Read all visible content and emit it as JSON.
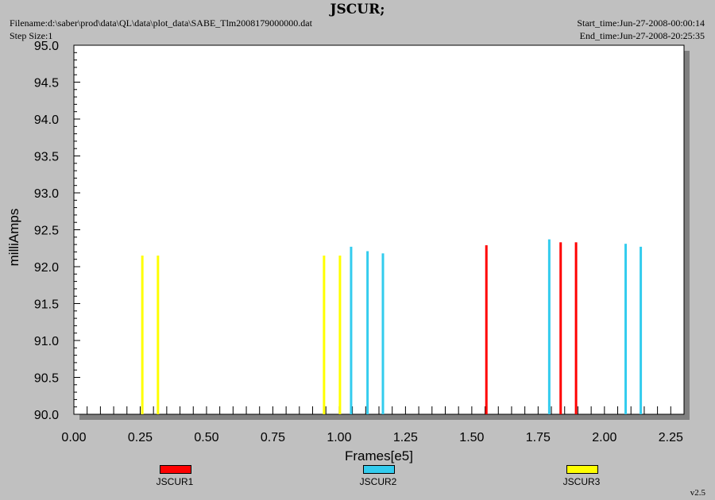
{
  "header": {
    "title": "JSCUR;",
    "filename": "Filename:d:\\saber\\prod\\data\\QL\\data\\plot_data\\SABE_Tlm2008179000000.dat",
    "step_size": "Step Size:1",
    "start_time": "Start_time:Jun-27-2008-00:00:14",
    "end_time": "End_time:Jun-27-2008-20:25:35"
  },
  "version": "v2.5",
  "chart_data": {
    "type": "bar",
    "title": "JSCUR;",
    "xlabel": "Frames[e5]",
    "ylabel": "milliAmps",
    "xlim": [
      0.0,
      2.3
    ],
    "ylim": [
      90.0,
      95.0
    ],
    "xticks": [
      "0.00",
      "0.25",
      "0.50",
      "0.75",
      "1.00",
      "1.25",
      "1.50",
      "1.75",
      "2.00",
      "2.25"
    ],
    "yticks": [
      "90.0",
      "90.5",
      "91.0",
      "91.5",
      "92.0",
      "92.5",
      "93.0",
      "93.5",
      "94.0",
      "94.5",
      "95.0"
    ],
    "grid": false,
    "legend_position": "bottom",
    "series": [
      {
        "name": "JSCUR1",
        "color": "#ff0000",
        "points": [
          {
            "x": 1.555,
            "y": 92.29
          },
          {
            "x": 1.835,
            "y": 92.33
          },
          {
            "x": 1.893,
            "y": 92.33
          }
        ]
      },
      {
        "name": "JSCUR2",
        "color": "#33ccee",
        "points": [
          {
            "x": 1.045,
            "y": 92.27
          },
          {
            "x": 1.107,
            "y": 92.21
          },
          {
            "x": 1.165,
            "y": 92.18
          },
          {
            "x": 1.792,
            "y": 92.37
          },
          {
            "x": 2.08,
            "y": 92.31
          },
          {
            "x": 2.137,
            "y": 92.27
          }
        ]
      },
      {
        "name": "JSCUR3",
        "color": "#ffff00",
        "points": [
          {
            "x": 0.258,
            "y": 92.15
          },
          {
            "x": 0.317,
            "y": 92.15
          },
          {
            "x": 0.943,
            "y": 92.15
          },
          {
            "x": 1.003,
            "y": 92.15
          }
        ]
      }
    ]
  }
}
